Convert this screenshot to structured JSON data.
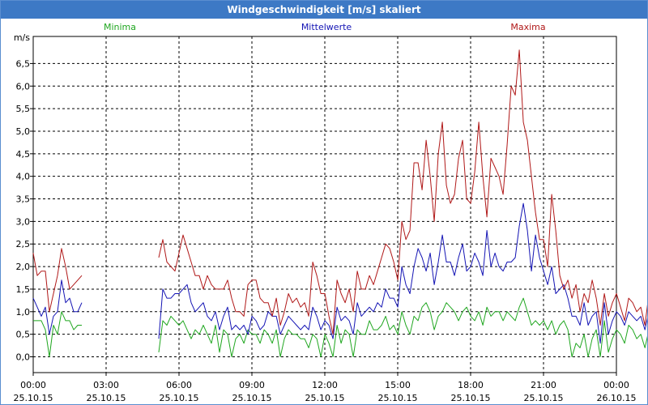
{
  "window": {
    "title": "Windgeschwindigkeit [m/s] skaliert"
  },
  "chart_data": {
    "type": "line",
    "title": "Windgeschwindigkeit [m/s] skaliert",
    "ylabel": "m/s",
    "xlabel": "",
    "ylim": [
      -0.35,
      7.1
    ],
    "xlim": [
      0,
      24
    ],
    "y_ticks": [
      "0,0",
      "0,5",
      "1,0",
      "1,5",
      "2,0",
      "2,5",
      "3,0",
      "3,5",
      "4,0",
      "4,5",
      "5,0",
      "5,5",
      "6,0",
      "6,5"
    ],
    "y_tick_values": [
      0,
      0.5,
      1,
      1.5,
      2,
      2.5,
      3,
      3.5,
      4,
      4.5,
      5,
      5.5,
      6,
      6.5
    ],
    "x_ticks": [
      {
        "hour": 0,
        "time": "00:00",
        "date": "25.10.15"
      },
      {
        "hour": 3,
        "time": "03:00",
        "date": "25.10.15"
      },
      {
        "hour": 6,
        "time": "06:00",
        "date": "25.10.15"
      },
      {
        "hour": 9,
        "time": "09:00",
        "date": "25.10.15"
      },
      {
        "hour": 12,
        "time": "12:00",
        "date": "25.10.15"
      },
      {
        "hour": 15,
        "time": "15:00",
        "date": "25.10.15"
      },
      {
        "hour": 18,
        "time": "18:00",
        "date": "25.10.15"
      },
      {
        "hour": 21,
        "time": "21:00",
        "date": "25.10.15"
      },
      {
        "hour": 24,
        "time": "00:00",
        "date": "26.10.15"
      }
    ],
    "grid": true,
    "legend_position": "top",
    "x_step_hours": 0.1667,
    "series": [
      {
        "name": "Minima",
        "color": "#1fa61f",
        "values": [
          0.8,
          0.8,
          0.8,
          0.6,
          0.0,
          0.7,
          0.5,
          1.0,
          0.8,
          0.8,
          0.6,
          0.7,
          0.7,
          null,
          null,
          null,
          null,
          null,
          null,
          null,
          null,
          null,
          null,
          null,
          null,
          null,
          null,
          null,
          null,
          null,
          null,
          0.1,
          0.8,
          0.7,
          0.9,
          0.8,
          0.7,
          0.8,
          0.6,
          0.4,
          0.6,
          0.5,
          0.7,
          0.5,
          0.3,
          0.7,
          0.1,
          0.6,
          0.5,
          0.0,
          0.4,
          0.5,
          0.3,
          0.6,
          0.5,
          0.5,
          0.3,
          0.6,
          0.5,
          0.3,
          0.6,
          0.0,
          0.4,
          0.6,
          0.5,
          0.5,
          0.4,
          0.4,
          0.2,
          0.5,
          0.4,
          0.0,
          0.5,
          0.3,
          0.0,
          0.7,
          0.3,
          0.6,
          0.5,
          0.0,
          0.6,
          0.5,
          0.5,
          0.8,
          0.6,
          0.6,
          0.7,
          0.9,
          0.6,
          0.7,
          0.5,
          1.0,
          0.7,
          0.5,
          0.9,
          0.8,
          1.1,
          1.2,
          1.0,
          0.6,
          0.9,
          1.0,
          1.2,
          1.1,
          1.0,
          0.8,
          1.0,
          1.1,
          0.9,
          0.8,
          1.0,
          0.7,
          1.1,
          0.9,
          1.0,
          1.0,
          0.8,
          1.0,
          0.9,
          0.8,
          1.1,
          1.3,
          1.0,
          0.7,
          0.8,
          0.7,
          0.8,
          0.6,
          0.8,
          0.5,
          0.7,
          0.8,
          0.6,
          0.0,
          0.3,
          0.2,
          0.5,
          0.0,
          0.4,
          0.6,
          0.0,
          0.8,
          0.1,
          0.4,
          0.6,
          0.5,
          0.3,
          0.7,
          0.6,
          0.4,
          0.5,
          0.2,
          0.6,
          0.5,
          0.3,
          0.6,
          0.2,
          0.6,
          0.5,
          0.7,
          0.6,
          0.4,
          0.6,
          0.5,
          0.5,
          0.7,
          0.3,
          0.6,
          0.0,
          0.4,
          0.5,
          0.5,
          0.1,
          0.6,
          0.3,
          0.5,
          0.0,
          0.6,
          0.2,
          0.4
        ]
      },
      {
        "name": "Mittelwerte",
        "color": "#1414b4",
        "values": [
          1.3,
          1.1,
          0.9,
          1.1,
          0.5,
          0.9,
          1.0,
          1.7,
          1.2,
          1.3,
          1.0,
          1.0,
          1.2,
          null,
          null,
          null,
          null,
          null,
          null,
          null,
          null,
          null,
          null,
          null,
          null,
          null,
          null,
          null,
          null,
          null,
          null,
          0.4,
          1.5,
          1.3,
          1.3,
          1.4,
          1.4,
          1.5,
          1.6,
          1.2,
          1.0,
          1.1,
          1.2,
          0.9,
          0.8,
          1.0,
          0.6,
          0.9,
          1.1,
          0.6,
          0.7,
          0.6,
          0.7,
          0.5,
          0.9,
          0.8,
          0.6,
          0.7,
          1.0,
          0.9,
          0.9,
          0.5,
          0.7,
          0.9,
          0.8,
          0.7,
          0.6,
          0.7,
          0.6,
          1.1,
          0.9,
          0.6,
          0.8,
          0.7,
          0.4,
          1.1,
          0.8,
          0.9,
          0.8,
          0.5,
          1.2,
          0.9,
          1.0,
          1.1,
          1.0,
          1.2,
          1.1,
          1.5,
          1.3,
          1.3,
          1.1,
          2.0,
          1.6,
          1.4,
          2.0,
          2.4,
          2.2,
          1.9,
          2.3,
          1.6,
          2.1,
          2.7,
          2.1,
          2.1,
          1.8,
          2.2,
          2.5,
          1.9,
          2.0,
          2.3,
          2.1,
          1.8,
          2.8,
          2.0,
          2.3,
          2.0,
          1.9,
          2.1,
          2.1,
          2.2,
          2.9,
          3.4,
          2.8,
          1.9,
          2.7,
          2.2,
          1.9,
          1.6,
          2.0,
          1.4,
          1.5,
          1.6,
          1.3,
          0.9,
          0.9,
          0.7,
          1.2,
          0.7,
          0.9,
          1.0,
          0.3,
          1.2,
          0.5,
          0.8,
          1.0,
          0.9,
          0.7,
          1.0,
          0.9,
          0.8,
          0.9,
          0.6,
          1.0,
          0.8,
          0.7,
          1.0,
          0.6,
          0.9,
          0.8,
          1.0,
          0.9,
          0.7,
          1.0,
          0.8,
          0.8,
          1.0,
          0.6,
          0.9,
          0.4,
          0.8,
          0.8,
          0.9,
          0.4,
          0.9,
          0.6,
          0.8,
          0.3,
          0.9,
          0.5,
          0.6
        ]
      },
      {
        "name": "Maxima",
        "color": "#b01818",
        "values": [
          2.3,
          1.8,
          1.9,
          1.9,
          1.0,
          1.4,
          1.8,
          2.4,
          2.0,
          1.5,
          1.6,
          1.7,
          1.8,
          null,
          null,
          null,
          null,
          null,
          null,
          null,
          null,
          null,
          null,
          null,
          null,
          null,
          null,
          null,
          null,
          null,
          null,
          2.2,
          2.6,
          2.1,
          2.0,
          1.9,
          2.3,
          2.7,
          2.4,
          2.1,
          1.8,
          1.8,
          1.5,
          1.8,
          1.6,
          1.5,
          1.5,
          1.5,
          1.7,
          1.3,
          1.0,
          1.0,
          0.9,
          1.6,
          1.7,
          1.7,
          1.3,
          1.2,
          1.2,
          0.9,
          1.3,
          0.7,
          1.0,
          1.4,
          1.2,
          1.3,
          1.1,
          1.2,
          0.9,
          2.1,
          1.8,
          1.4,
          1.4,
          0.9,
          0.5,
          1.7,
          1.4,
          1.2,
          1.5,
          1.0,
          1.9,
          1.5,
          1.5,
          1.8,
          1.6,
          1.9,
          2.2,
          2.5,
          2.4,
          2.1,
          1.7,
          3.0,
          2.6,
          2.8,
          4.3,
          4.3,
          3.7,
          4.8,
          4.0,
          3.0,
          4.5,
          5.2,
          3.8,
          3.4,
          3.6,
          4.4,
          4.8,
          3.5,
          3.4,
          4.1,
          5.2,
          4.0,
          3.1,
          4.4,
          4.2,
          4.0,
          3.6,
          4.7,
          6.0,
          5.8,
          6.8,
          5.2,
          4.8,
          4.0,
          3.2,
          2.6,
          2.6,
          2.0,
          3.6,
          2.8,
          1.8,
          1.5,
          1.7,
          1.3,
          1.6,
          1.0,
          1.4,
          1.2,
          1.7,
          1.3,
          0.7,
          1.4,
          0.9,
          1.2,
          1.4,
          1.1,
          0.8,
          1.3,
          1.2,
          1.0,
          1.1,
          0.7,
          1.4,
          1.2,
          1.0,
          1.3,
          0.9,
          1.1,
          1.2,
          1.3,
          1.4,
          1.1,
          1.3,
          1.1,
          1.2,
          1.5,
          1.5,
          1.3,
          1.4,
          1.3,
          1.3,
          1.4,
          1.4,
          1.4,
          1.2,
          1.3,
          1.0,
          1.2,
          1.0,
          1.0
        ]
      }
    ]
  }
}
